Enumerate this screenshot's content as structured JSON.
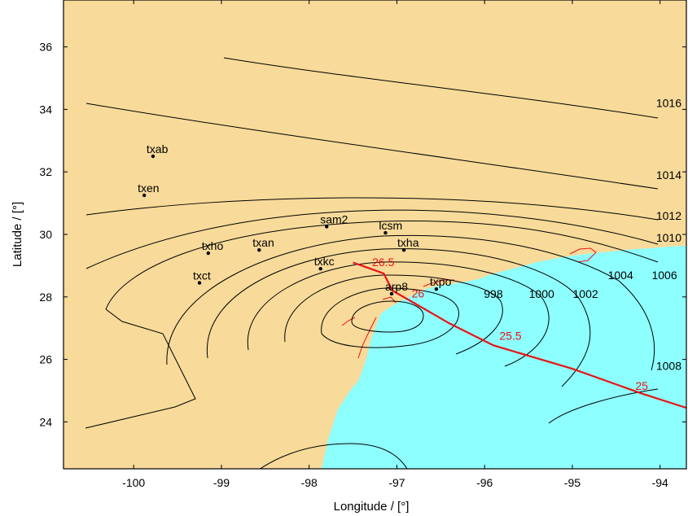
{
  "axes": {
    "xlabel": "Longitude / [°]",
    "ylabel": "Latitude / [°]",
    "xlim": [
      -100.8,
      -93.7
    ],
    "ylim": [
      22.5,
      37.5
    ],
    "xticks": [
      -100,
      -99,
      -98,
      -97,
      -96,
      -95,
      -94
    ],
    "yticks": [
      24,
      26,
      28,
      30,
      32,
      34,
      36
    ]
  },
  "colors": {
    "land": "#f8da9a",
    "sea": "#8effff",
    "isobar": "#000000",
    "track": "#e81414",
    "station": "#000000",
    "frame": "#000000"
  },
  "isobars": [
    {
      "label": "998",
      "lon": -95.9,
      "lat": 28.1
    },
    {
      "label": "1000",
      "lon": -95.35,
      "lat": 28.1
    },
    {
      "label": "1002",
      "lon": -94.85,
      "lat": 28.1
    },
    {
      "label": "1004",
      "lon": -94.45,
      "lat": 28.7
    },
    {
      "label": "1006",
      "lon": -93.95,
      "lat": 28.7
    },
    {
      "label": "1008",
      "lon": -93.9,
      "lat": 25.8
    },
    {
      "label": "1010",
      "lon": -93.9,
      "lat": 29.9
    },
    {
      "label": "1012",
      "lon": -93.9,
      "lat": 30.6
    },
    {
      "label": "1014",
      "lon": -93.9,
      "lat": 31.9
    },
    {
      "label": "1016",
      "lon": -93.9,
      "lat": 34.2
    }
  ],
  "stations": [
    {
      "name": "txab",
      "lon": -99.78,
      "lat": 32.5
    },
    {
      "name": "txen",
      "lon": -99.88,
      "lat": 31.25
    },
    {
      "name": "sam2",
      "lon": -97.8,
      "lat": 30.25
    },
    {
      "name": "lcsm",
      "lon": -97.13,
      "lat": 30.05
    },
    {
      "name": "txha",
      "lon": -96.92,
      "lat": 29.5
    },
    {
      "name": "txan",
      "lon": -98.57,
      "lat": 29.5
    },
    {
      "name": "txho",
      "lon": -99.15,
      "lat": 29.4
    },
    {
      "name": "txkc",
      "lon": -97.87,
      "lat": 28.9
    },
    {
      "name": "txct",
      "lon": -99.25,
      "lat": 28.45
    },
    {
      "name": "txpo",
      "lon": -96.55,
      "lat": 28.25
    },
    {
      "name": "arp8",
      "lon": -97.06,
      "lat": 28.1
    }
  ],
  "storm_track": {
    "points": [
      {
        "lon": -97.5,
        "lat": 29.1
      },
      {
        "lon": -97.3,
        "lat": 28.9
      },
      {
        "lon": -97.15,
        "lat": 28.75
      },
      {
        "lon": -97.05,
        "lat": 28.2
      },
      {
        "lon": -96.8,
        "lat": 27.8
      },
      {
        "lon": -96.4,
        "lat": 27.15
      },
      {
        "lon": -95.9,
        "lat": 26.45
      },
      {
        "lon": -95.0,
        "lat": 25.7
      },
      {
        "lon": -94.2,
        "lat": 24.9
      },
      {
        "lon": -93.7,
        "lat": 24.45
      }
    ],
    "labels": [
      {
        "text": "26.5",
        "lon": -97.3,
        "lat": 28.9
      },
      {
        "text": "26",
        "lon": -96.85,
        "lat": 27.9
      },
      {
        "text": "25.5",
        "lon": -95.85,
        "lat": 26.55
      },
      {
        "text": "25",
        "lon": -94.3,
        "lat": 24.95
      }
    ]
  }
}
